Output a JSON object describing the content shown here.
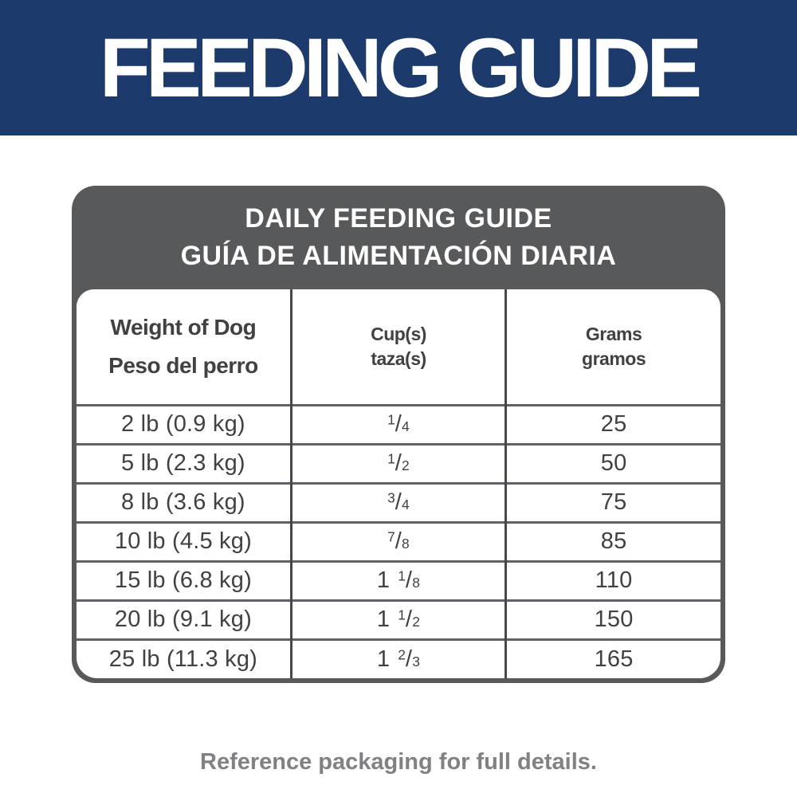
{
  "colors": {
    "banner_blue": "#1d3a6d",
    "header_gray": "#58595b",
    "text_dark": "#414042",
    "note_gray": "#808184"
  },
  "banner": {
    "title": "FEEDING GUIDE"
  },
  "card": {
    "title_en": "DAILY FEEDING GUIDE",
    "title_es": "GUÍA DE ALIMENTACIÓN DIARIA"
  },
  "table": {
    "slash": "/",
    "columns": [
      {
        "en": "Weight of Dog",
        "es": "Peso del perro"
      },
      {
        "en": "Cup(s)",
        "es": "taza(s)"
      },
      {
        "en": "Grams",
        "es": "gramos"
      }
    ],
    "rows": [
      {
        "weight": "2 lb (0.9 kg)",
        "cup_whole": "",
        "cup_num": "1",
        "cup_den": "4",
        "grams": "25"
      },
      {
        "weight": "5 lb (2.3 kg)",
        "cup_whole": "",
        "cup_num": "1",
        "cup_den": "2",
        "grams": "50"
      },
      {
        "weight": "8 lb (3.6 kg)",
        "cup_whole": "",
        "cup_num": "3",
        "cup_den": "4",
        "grams": "75"
      },
      {
        "weight": "10 lb (4.5 kg)",
        "cup_whole": "",
        "cup_num": "7",
        "cup_den": "8",
        "grams": "85"
      },
      {
        "weight": "15 lb (6.8 kg)",
        "cup_whole": "1",
        "cup_num": "1",
        "cup_den": "8",
        "grams": "110"
      },
      {
        "weight": "20 lb (9.1 kg)",
        "cup_whole": "1",
        "cup_num": "1",
        "cup_den": "2",
        "grams": "150"
      },
      {
        "weight": "25 lb (11.3 kg)",
        "cup_whole": "1",
        "cup_num": "2",
        "cup_den": "3",
        "grams": "165"
      }
    ]
  },
  "footer": {
    "note": "Reference packaging for full details."
  }
}
